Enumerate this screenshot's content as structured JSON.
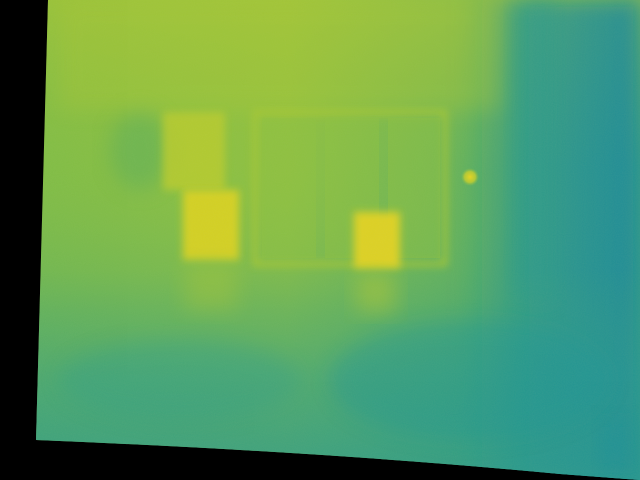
{
  "image": {
    "kind": "thermal-camera-frame",
    "colormap": "viridis-like",
    "palette": {
      "background_void": "#000000",
      "cold": "#1a8f9a",
      "cool": "#2f9e8a",
      "mid": "#5cae5a",
      "warm": "#8ec040",
      "hot": "#c9cf28",
      "hottest": "#e6d420"
    },
    "objects": [
      {
        "name": "wall-background",
        "temperature_level": "warm"
      },
      {
        "name": "glass-door-panel",
        "temperature_level": "warm"
      },
      {
        "name": "left-box-upper",
        "temperature_level": "hot"
      },
      {
        "name": "left-box-lower",
        "temperature_level": "hottest"
      },
      {
        "name": "small-box-on-floor",
        "temperature_level": "hottest"
      },
      {
        "name": "hot-spot-lamp",
        "temperature_level": "hottest"
      },
      {
        "name": "floor-foreground",
        "temperature_level": "cool"
      },
      {
        "name": "right-side-shadow",
        "temperature_level": "cold"
      }
    ]
  }
}
